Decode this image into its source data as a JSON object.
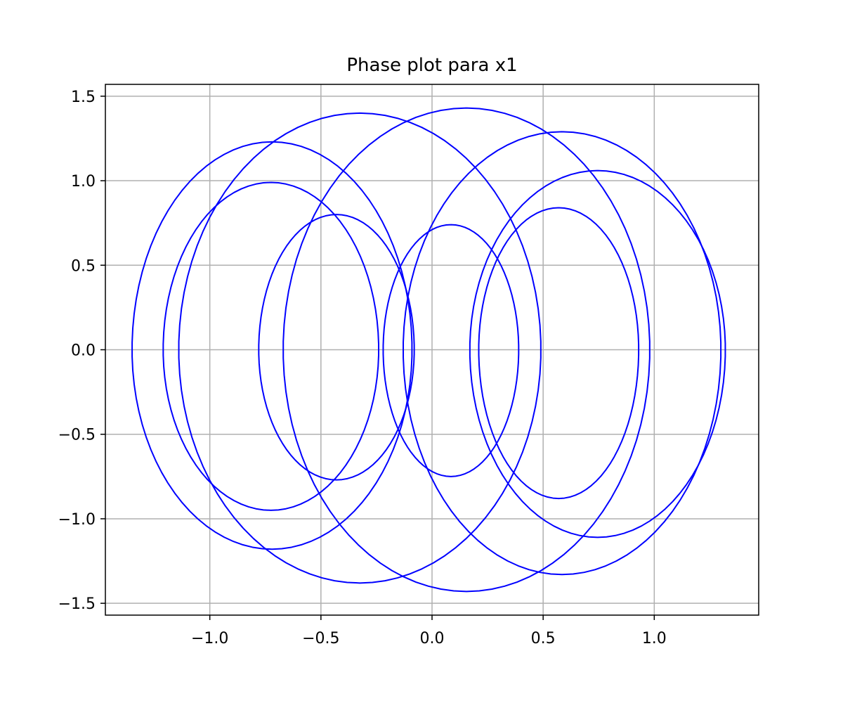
{
  "chart_data": {
    "type": "line",
    "title": "Phase plot para x1",
    "xlabel": "",
    "ylabel": "",
    "xlim": [
      -1.47,
      1.47
    ],
    "ylim": [
      -1.57,
      1.57
    ],
    "grid": true,
    "x_ticks": [
      -1.0,
      -0.5,
      0.0,
      0.5,
      1.0
    ],
    "x_tick_labels": [
      "−1.0",
      "−0.5",
      "0.0",
      "0.5",
      "1.0"
    ],
    "y_ticks": [
      1.5,
      1.0,
      0.5,
      0.0,
      -0.5,
      -1.0,
      -1.5
    ],
    "y_tick_labels": [
      "1.5",
      "1.0",
      "0.5",
      "0.0",
      "−0.5",
      "−1.0",
      "−1.5"
    ],
    "series_color": "#0000ff",
    "loops": [
      {
        "x_left": -1.35,
        "x_right": -0.09,
        "y_top": 1.23,
        "y_bottom": -1.18
      },
      {
        "x_left": -1.21,
        "x_right": -0.24,
        "y_top": 0.99,
        "y_bottom": -0.95
      },
      {
        "x_left": -1.14,
        "x_right": 0.49,
        "y_top": 1.4,
        "y_bottom": -1.38
      },
      {
        "x_left": -0.78,
        "x_right": -0.08,
        "y_top": 0.8,
        "y_bottom": -0.77
      },
      {
        "x_left": -0.67,
        "x_right": 0.98,
        "y_top": 1.43,
        "y_bottom": -1.43
      },
      {
        "x_left": -0.22,
        "x_right": 0.39,
        "y_top": 0.74,
        "y_bottom": -0.75
      },
      {
        "x_left": -0.13,
        "x_right": 1.3,
        "y_top": 1.29,
        "y_bottom": -1.33
      },
      {
        "x_left": 0.17,
        "x_right": 1.32,
        "y_top": 1.06,
        "y_bottom": -1.11
      },
      {
        "x_left": 0.21,
        "x_right": 0.93,
        "y_top": 0.84,
        "y_bottom": -0.88
      }
    ]
  }
}
